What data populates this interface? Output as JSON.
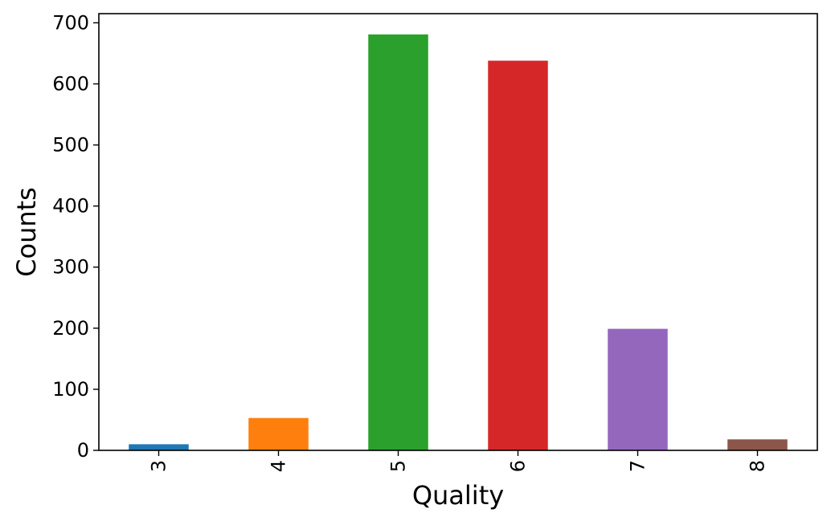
{
  "chart_data": {
    "type": "bar",
    "title": "",
    "xlabel": "Quality",
    "ylabel": "Counts",
    "categories": [
      "3",
      "4",
      "5",
      "6",
      "7",
      "8"
    ],
    "values": [
      10,
      53,
      681,
      638,
      199,
      18
    ],
    "colors": [
      "#1f77b4",
      "#ff7f0e",
      "#2ca02c",
      "#d62728",
      "#9467bd",
      "#8c564b"
    ],
    "ylim": [
      0,
      715
    ],
    "yticks": [
      0,
      100,
      200,
      300,
      400,
      500,
      600,
      700
    ],
    "xtick_rotation": "vertical",
    "grid": false,
    "legend": "none"
  }
}
